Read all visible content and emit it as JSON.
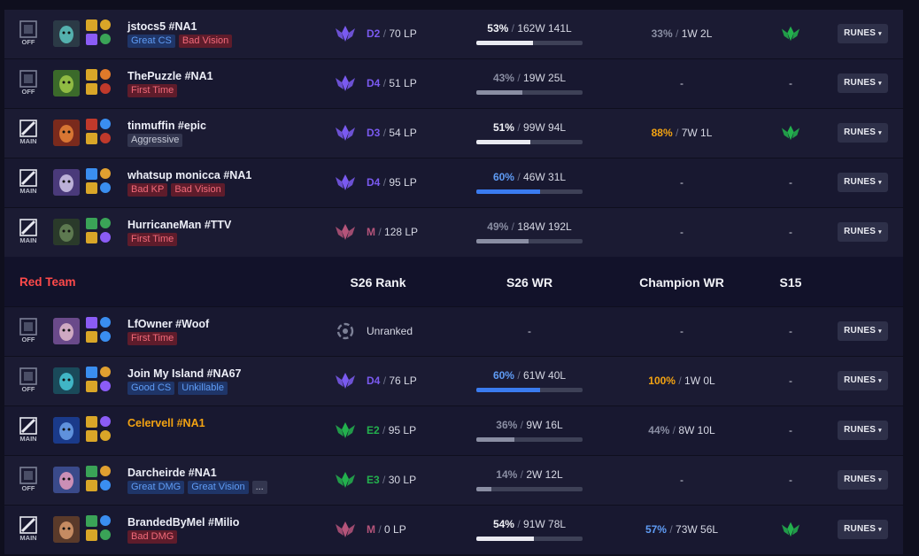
{
  "columns": {
    "team": "Red Team",
    "rank": "S26 Rank",
    "wr": "S26 WR",
    "champion_wr": "Champion WR",
    "s15": "S15"
  },
  "colors": {
    "good": "#5f9cf5",
    "bad": "#f26a7a",
    "gold": "#f3a312",
    "red_team": "#ff4a4a",
    "diamond": "#7a5af0",
    "emerald": "#23b14d",
    "master": "#b5547a"
  },
  "runes_label": "RUNES",
  "rows": [
    {
      "role": "OFF",
      "role_icon": "off-role-icon",
      "name": "jstocs5 #NA1",
      "highlight": false,
      "tags": [
        {
          "text": "Great CS",
          "kind": "good"
        },
        {
          "text": "Bad Vision",
          "kind": "bad"
        }
      ],
      "rank_icon": "diamond-rank-icon",
      "tier": "D2",
      "lp": "70 LP",
      "wr_pct": "53%",
      "wr_record": "162W 141L",
      "wr_fraction": 0.53,
      "champ_pct": "33%",
      "champ_record": "1W 2L",
      "champ_color": "#8a8ea3",
      "s15_icon": "emerald-rank-icon",
      "s15": ""
    },
    {
      "role": "OFF",
      "role_icon": "off-role-icon",
      "name": "ThePuzzle #NA1",
      "highlight": false,
      "tags": [
        {
          "text": "First Time",
          "kind": "bad"
        }
      ],
      "rank_icon": "diamond-rank-icon",
      "tier": "D4",
      "lp": "51 LP",
      "wr_pct": "43%",
      "wr_record": "19W 25L",
      "wr_fraction": 0.43,
      "champ_pct": "",
      "champ_record": "-",
      "champ_color": "",
      "s15_icon": "",
      "s15": "-"
    },
    {
      "role": "MAIN",
      "role_icon": "main-role-icon",
      "name": "tinmuffin #epic",
      "highlight": false,
      "tags": [
        {
          "text": "Aggressive",
          "kind": "neutral"
        }
      ],
      "rank_icon": "diamond-rank-icon",
      "tier": "D3",
      "lp": "54 LP",
      "wr_pct": "51%",
      "wr_record": "99W 94L",
      "wr_fraction": 0.51,
      "champ_pct": "88%",
      "champ_record": "7W 1L",
      "champ_color": "#f3a312",
      "s15_icon": "emerald-rank-icon",
      "s15": ""
    },
    {
      "role": "MAIN",
      "role_icon": "main-role-icon",
      "name": "whatsup monicca #NA1",
      "highlight": false,
      "tags": [
        {
          "text": "Bad KP",
          "kind": "bad"
        },
        {
          "text": "Bad Vision",
          "kind": "bad"
        }
      ],
      "rank_icon": "diamond-rank-icon",
      "tier": "D4",
      "lp": "95 LP",
      "wr_pct": "60%",
      "wr_record": "46W 31L",
      "wr_fraction": 0.6,
      "champ_pct": "",
      "champ_record": "-",
      "champ_color": "",
      "s15_icon": "",
      "s15": "-"
    },
    {
      "role": "MAIN",
      "role_icon": "main-role-icon",
      "name": "HurricaneMan #TTV",
      "highlight": false,
      "tags": [
        {
          "text": "First Time",
          "kind": "bad"
        }
      ],
      "rank_icon": "master-rank-icon",
      "tier": "M",
      "lp": "128 LP",
      "wr_pct": "49%",
      "wr_record": "184W 192L",
      "wr_fraction": 0.49,
      "champ_pct": "",
      "champ_record": "-",
      "champ_color": "",
      "s15_icon": "",
      "s15": "-"
    },
    {
      "role": "OFF",
      "role_icon": "off-role-icon",
      "name": "LfOwner #Woof",
      "highlight": false,
      "tags": [
        {
          "text": "First Time",
          "kind": "bad"
        }
      ],
      "rank_icon": "unranked-icon",
      "tier": "",
      "lp": "Unranked",
      "wr_pct": "",
      "wr_record": "-",
      "wr_fraction": null,
      "champ_pct": "",
      "champ_record": "-",
      "champ_color": "",
      "s15_icon": "",
      "s15": "-"
    },
    {
      "role": "OFF",
      "role_icon": "off-role-icon",
      "name": "Join My Island #NA67",
      "highlight": false,
      "tags": [
        {
          "text": "Good CS",
          "kind": "good"
        },
        {
          "text": "Unkillable",
          "kind": "good"
        }
      ],
      "rank_icon": "diamond-rank-icon",
      "tier": "D4",
      "lp": "76 LP",
      "wr_pct": "60%",
      "wr_record": "61W 40L",
      "wr_fraction": 0.6,
      "champ_pct": "100%",
      "champ_record": "1W 0L",
      "champ_color": "#f3a312",
      "s15_icon": "",
      "s15": "-"
    },
    {
      "role": "MAIN",
      "role_icon": "main-role-icon",
      "name": "Celervell #NA1",
      "highlight": true,
      "tags": [],
      "rank_icon": "emerald-rank-icon",
      "tier": "E2",
      "lp": "95 LP",
      "wr_pct": "36%",
      "wr_record": "9W 16L",
      "wr_fraction": 0.36,
      "champ_pct": "44%",
      "champ_record": "8W 10L",
      "champ_color": "#8a8ea3",
      "s15_icon": "",
      "s15": "-"
    },
    {
      "role": "OFF",
      "role_icon": "off-role-icon",
      "name": "Darcheirde #NA1",
      "highlight": false,
      "tags": [
        {
          "text": "Great DMG",
          "kind": "good"
        },
        {
          "text": "Great Vision",
          "kind": "good"
        },
        {
          "text": "...",
          "kind": "neutral"
        }
      ],
      "rank_icon": "emerald-rank-icon",
      "tier": "E3",
      "lp": "30 LP",
      "wr_pct": "14%",
      "wr_record": "2W 12L",
      "wr_fraction": 0.14,
      "champ_pct": "",
      "champ_record": "-",
      "champ_color": "",
      "s15_icon": "",
      "s15": "-"
    },
    {
      "role": "MAIN",
      "role_icon": "main-role-icon",
      "name": "BrandedByMel #Milio",
      "highlight": false,
      "tags": [
        {
          "text": "Bad DMG",
          "kind": "bad"
        }
      ],
      "rank_icon": "master-rank-icon",
      "tier": "M",
      "lp": "0 LP",
      "wr_pct": "54%",
      "wr_record": "91W 78L",
      "wr_fraction": 0.54,
      "champ_pct": "57%",
      "champ_record": "73W 56L",
      "champ_color": "#5f9cf5",
      "s15_icon": "emerald-rank-icon",
      "s15": ""
    }
  ]
}
